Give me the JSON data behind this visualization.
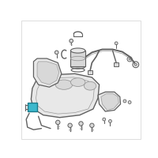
{
  "bg_color": "#ffffff",
  "border_color": "#d0d0d0",
  "highlight_color": "#3db8cc",
  "line_color": "#606060",
  "fill_light": "#e8e8e8",
  "fill_mid": "#d8d8d8",
  "fill_dark": "#c8c8c8",
  "stroke_light": "#999999"
}
